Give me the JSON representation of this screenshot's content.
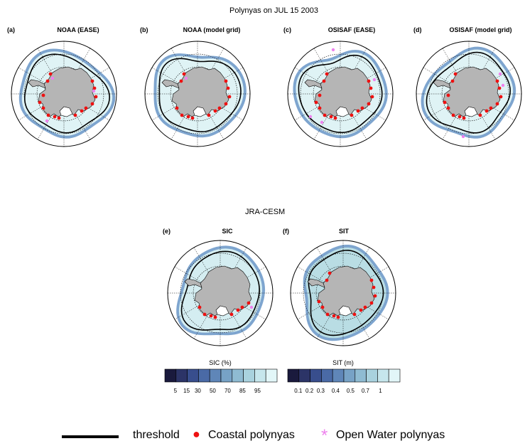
{
  "figure_title": "Polynyas on JUL 15 2003",
  "section_title": "JRA-CESM",
  "panels": [
    {
      "label": "(a)",
      "title": "NOAA (EASE)"
    },
    {
      "label": "(b)",
      "title": "NOAA (model grid)"
    },
    {
      "label": "(c)",
      "title": "OSISAF (EASE)"
    },
    {
      "label": "(d)",
      "title": "OSISAF (model grid)"
    },
    {
      "label": "(e)",
      "title": "SIC"
    },
    {
      "label": "(f)",
      "title": "SIT"
    }
  ],
  "colorbars": [
    {
      "title": "SIC (%)",
      "ticks": [
        "5",
        "15",
        "30",
        "50",
        "70",
        "85",
        "95"
      ],
      "colors": [
        "#1a1a3d",
        "#2c3467",
        "#384e8d",
        "#4a6aa6",
        "#5f86b8",
        "#77a2c6",
        "#8fbbd2",
        "#a9d2de",
        "#c6e6ec",
        "#e2f6f8"
      ]
    },
    {
      "title": "SIT (m)",
      "ticks": [
        "0.1",
        "0.2",
        "0.3",
        "0.4",
        "0.5",
        "0.7",
        "1"
      ],
      "colors": [
        "#1a1a3d",
        "#2c3467",
        "#384e8d",
        "#4a6aa6",
        "#5f86b8",
        "#77a2c6",
        "#8fbbd2",
        "#a9d2de",
        "#c6e6ec",
        "#e2f6f8"
      ]
    }
  ],
  "legend": {
    "threshold_label": "threshold",
    "coastal_label": "Coastal polynyas",
    "open_water_label": "Open Water polynyas",
    "coastal_symbol": "●",
    "open_water_symbol": "*"
  },
  "colors": {
    "land": "#b5b5b5",
    "ice": "#dff3f5",
    "ice_edge": "#7ea5cf",
    "coastal": "#ee1111",
    "open_water": "#ee82ee",
    "threshold": "#000000"
  }
}
